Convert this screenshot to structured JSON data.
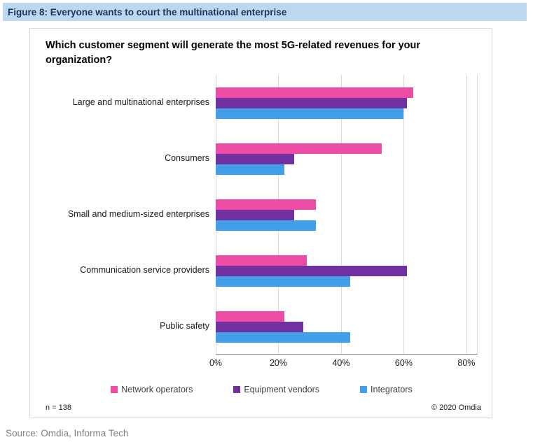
{
  "header": {
    "title": "Figure 8: Everyone wants to court the multinational enterprise",
    "bg_color": "#BDD7EE",
    "text_color": "#17365D"
  },
  "chart_data": {
    "type": "bar",
    "orientation": "horizontal",
    "title": "Which customer segment will generate the most 5G-related revenues for your organization?",
    "categories": [
      "Large and multinational enterprises",
      "Consumers",
      "Small and medium-sized enterprises",
      "Communication service providers",
      "Public safety"
    ],
    "series": [
      {
        "name": "Network operators",
        "color": "#ED4CA6",
        "values": [
          63,
          53,
          32,
          29,
          22
        ]
      },
      {
        "name": "Equipment vendors",
        "color": "#7030A0",
        "values": [
          61,
          25,
          25,
          61,
          28
        ]
      },
      {
        "name": "Integrators",
        "color": "#41A0E8",
        "values": [
          60,
          22,
          32,
          43,
          43
        ]
      }
    ],
    "xlabel": "",
    "ylabel": "",
    "xlim": [
      0,
      80
    ],
    "x_ticks": [
      "0%",
      "20%",
      "40%",
      "60%",
      "80%"
    ],
    "grid": true,
    "legend_position": "bottom"
  },
  "footer": {
    "sample_size": "n = 138",
    "copyright": "© 2020 Omdia",
    "source": "Source: Omdia, Informa Tech"
  }
}
